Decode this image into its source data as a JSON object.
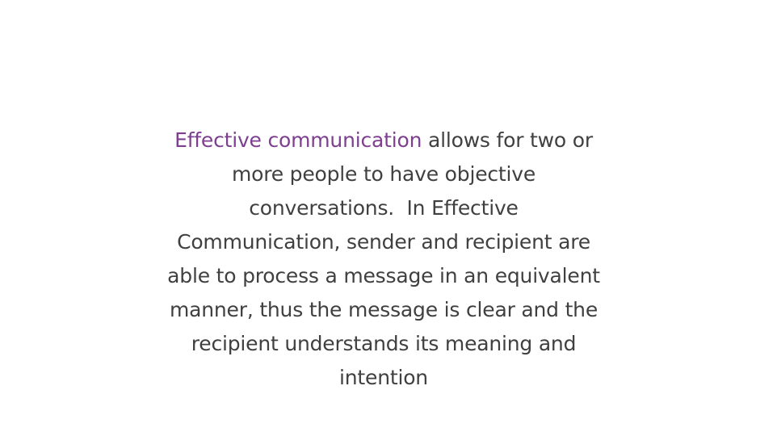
{
  "slide": {
    "highlight_text": "Effective communication",
    "body_text": " allows for two or more people to have objective conversations.  In Effective Communication, sender and recipient are able to process a message in an equivalent manner, thus the message is clear and the recipient understands its meaning and intention",
    "accent_color": "#7e3f8f",
    "text_color": "#404040"
  }
}
